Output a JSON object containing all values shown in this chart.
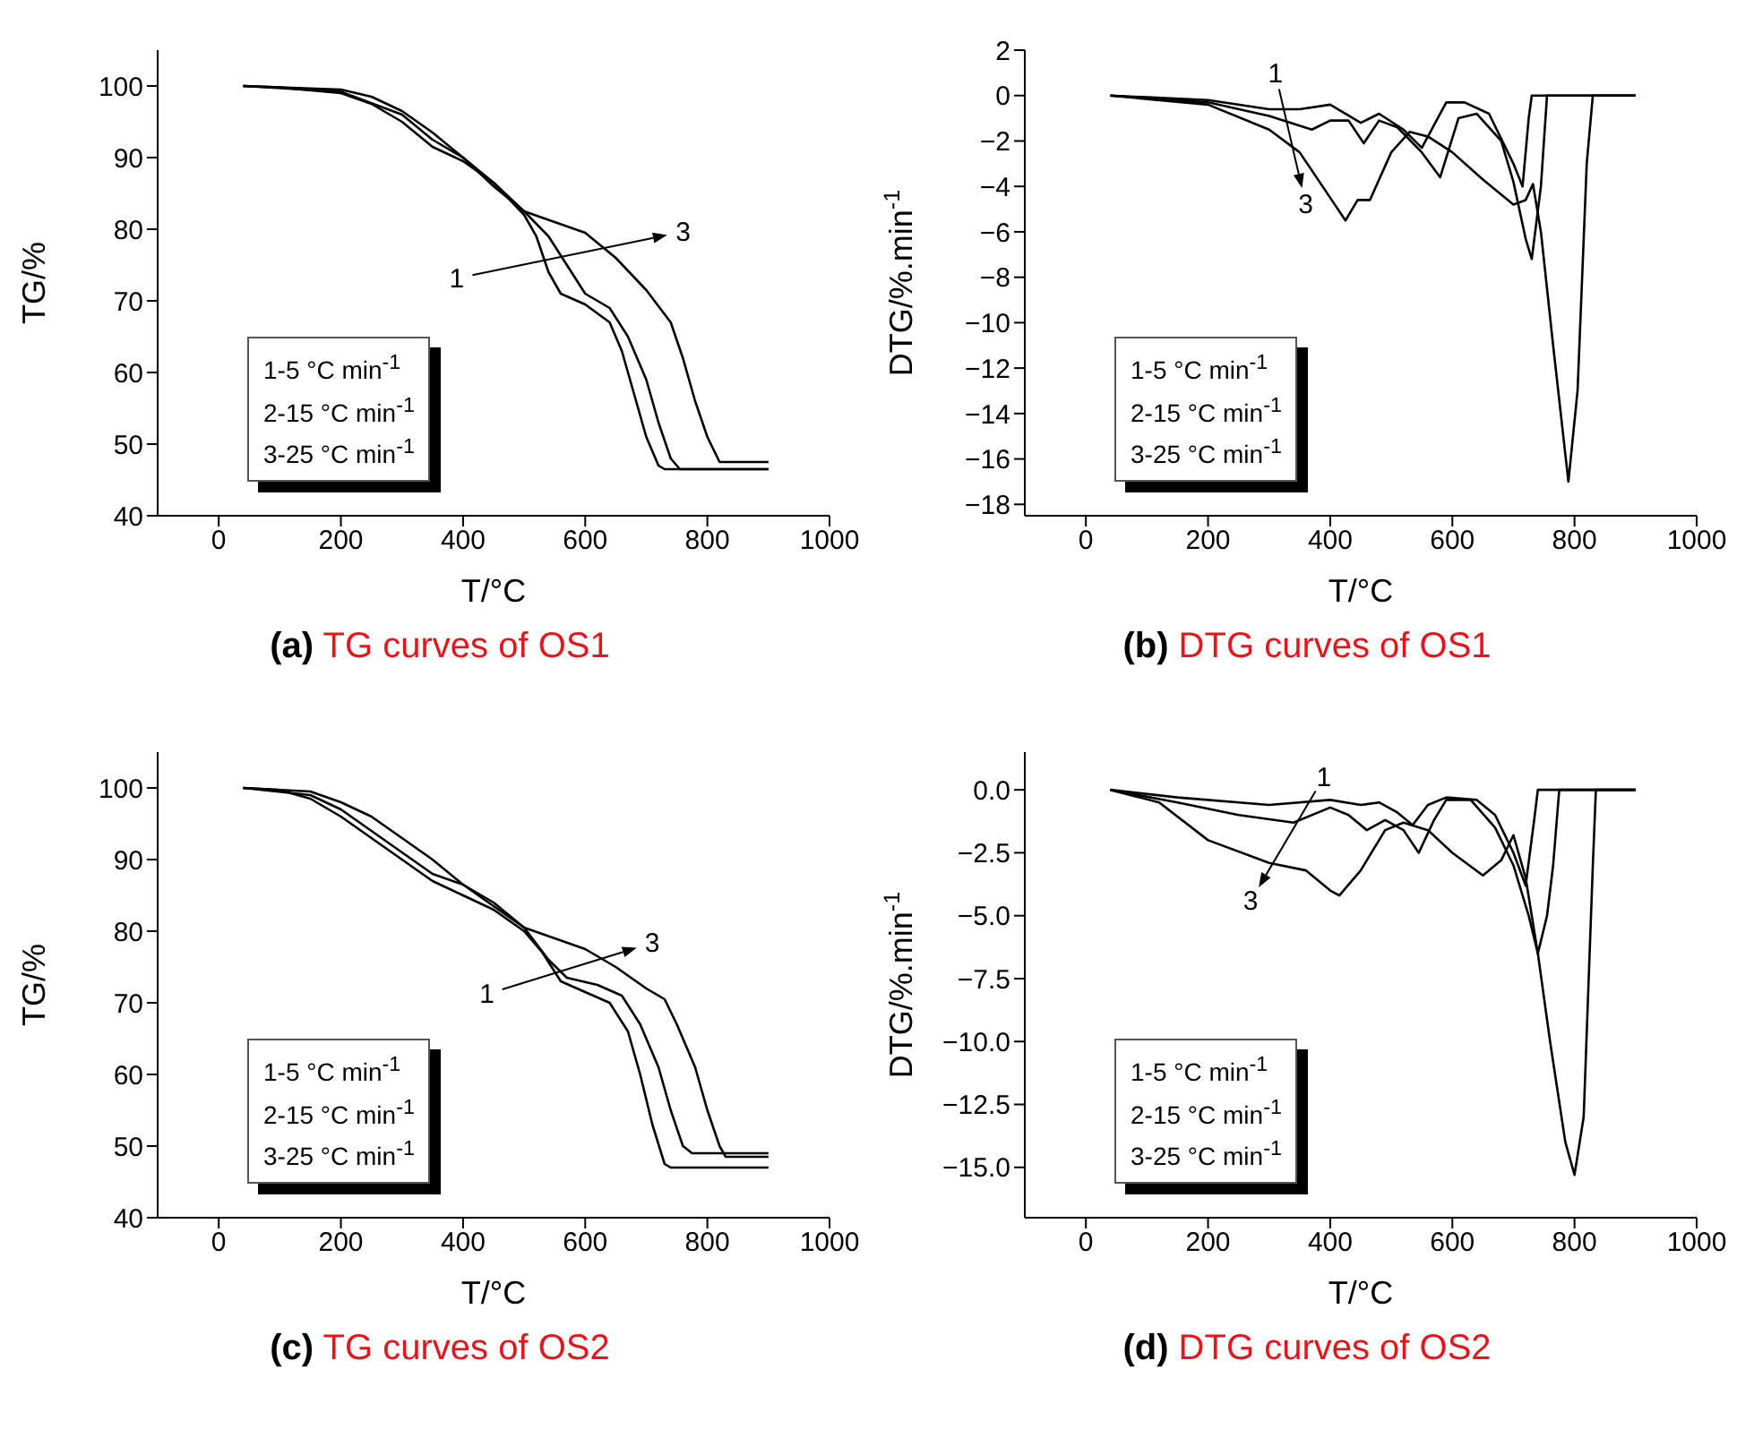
{
  "chart_data": [
    {
      "type": "line",
      "title": "(a) TG curves of OS1",
      "xlabel": "T/°C",
      "ylabel": "TG/%",
      "xlim": [
        -100,
        1000
      ],
      "xticks": [
        0,
        200,
        400,
        600,
        800,
        1000
      ],
      "ylim": [
        40,
        105
      ],
      "yticks": [
        40,
        50,
        60,
        70,
        80,
        90,
        100
      ],
      "series": [
        {
          "color": "#000000",
          "x": [
            40,
            100,
            200,
            250,
            300,
            350,
            400,
            450,
            500,
            520,
            540,
            560,
            600,
            640,
            660,
            680,
            700,
            720,
            730,
            800,
            900
          ],
          "values": [
            100,
            99.8,
            99,
            97.5,
            95,
            91.5,
            89.5,
            86.5,
            82,
            79,
            74,
            71,
            69.5,
            67,
            63,
            57,
            51,
            47,
            46.5,
            46.5,
            46.5
          ]
        },
        {
          "color": "#000000",
          "x": [
            40,
            200,
            300,
            350,
            400,
            450,
            500,
            540,
            570,
            600,
            640,
            670,
            700,
            720,
            740,
            755,
            900
          ],
          "values": [
            100,
            99.2,
            96,
            92.5,
            90,
            86.5,
            82.5,
            79,
            75,
            71,
            69,
            65,
            59,
            53,
            48,
            46.5,
            46.5
          ]
        },
        {
          "color": "#000000",
          "x": [
            40,
            200,
            250,
            300,
            350,
            400,
            450,
            500,
            550,
            600,
            650,
            700,
            740,
            760,
            780,
            800,
            820,
            900
          ],
          "values": [
            100,
            99.5,
            98.5,
            96.5,
            93.5,
            90,
            86,
            82.5,
            81,
            79.5,
            76,
            71.5,
            67,
            62,
            56,
            51,
            47.5,
            47.5
          ]
        }
      ],
      "annotations": [
        "1",
        "3",
        "1-5  °C min$^{-1}$",
        "2-15 °C min$^{-1}$",
        "3-25 °C min$^{-1}$"
      ]
    },
    {
      "type": "line",
      "title": "(b) DTG curves of OS1",
      "xlabel": "T/°C",
      "ylabel": "DTG/%.min$^{-1}$",
      "xlim": [
        -100,
        1000
      ],
      "xticks": [
        0,
        200,
        400,
        600,
        800,
        1000
      ],
      "ylim": [
        -18.5,
        2
      ],
      "yticks": [
        {
          "value": -18,
          "label": "−18"
        },
        {
          "value": -16,
          "label": "−16"
        },
        {
          "value": -14,
          "label": "−14"
        },
        {
          "value": -12,
          "label": "−12"
        },
        {
          "value": -10,
          "label": "−10"
        },
        {
          "value": -8,
          "label": "−8"
        },
        {
          "value": -6,
          "label": "−6"
        },
        {
          "value": -4,
          "label": "−4"
        },
        {
          "value": -2,
          "label": "−2"
        },
        {
          "value": 0,
          "label": "0"
        },
        {
          "value": 2,
          "label": "2"
        }
      ],
      "series": [
        {
          "color": "#000000",
          "x": [
            40,
            200,
            300,
            350,
            400,
            450,
            480,
            520,
            550,
            590,
            620,
            660,
            700,
            715,
            725,
            730,
            900
          ],
          "values": [
            0,
            -0.2,
            -0.6,
            -0.6,
            -0.4,
            -1.2,
            -0.8,
            -1.5,
            -2.3,
            -0.3,
            -0.3,
            -0.8,
            -3,
            -4,
            -1,
            0,
            0
          ]
        },
        {
          "color": "#000000",
          "x": [
            40,
            200,
            300,
            370,
            400,
            430,
            455,
            480,
            510,
            550,
            580,
            610,
            640,
            680,
            700,
            720,
            730,
            745,
            755,
            900
          ],
          "values": [
            0,
            -0.3,
            -0.9,
            -1.5,
            -1.1,
            -1.1,
            -2.1,
            -1.1,
            -1.4,
            -2.5,
            -3.6,
            -1,
            -0.8,
            -2,
            -3.8,
            -6.3,
            -7.2,
            -4,
            0,
            0
          ]
        },
        {
          "color": "#000000",
          "x": [
            40,
            200,
            300,
            350,
            400,
            425,
            445,
            465,
            500,
            530,
            560,
            600,
            650,
            700,
            720,
            732,
            745,
            765,
            790,
            805,
            820,
            830,
            900
          ],
          "values": [
            0,
            -0.4,
            -1.5,
            -2.5,
            -4.5,
            -5.5,
            -4.6,
            -4.6,
            -2.5,
            -1.6,
            -1.8,
            -2.5,
            -3.7,
            -4.8,
            -4.6,
            -3.9,
            -6,
            -11,
            -17,
            -13,
            -3,
            0,
            0
          ]
        }
      ],
      "annotations": [
        "1",
        "3",
        "1-5  °C min$^{-1}$",
        "2-15 °C min$^{-1}$",
        "3-25 °C min$^{-1}$"
      ]
    },
    {
      "type": "line",
      "title": "(c) TG curves of OS2",
      "xlabel": "T/°C",
      "ylabel": "TG/%",
      "xlim": [
        -100,
        1000
      ],
      "xticks": [
        0,
        200,
        400,
        600,
        800,
        1000
      ],
      "ylim": [
        40,
        105
      ],
      "yticks": [
        40,
        50,
        60,
        70,
        80,
        90,
        100
      ],
      "series": [
        {
          "color": "#000000",
          "x": [
            40,
            100,
            150,
            200,
            250,
            300,
            350,
            400,
            450,
            500,
            530,
            560,
            600,
            640,
            670,
            690,
            710,
            730,
            740,
            900
          ],
          "values": [
            100,
            99.7,
            98.5,
            96,
            93,
            90,
            87,
            85,
            83,
            80,
            77,
            73,
            71.5,
            70,
            66,
            60,
            53,
            47.5,
            47,
            47
          ]
        },
        {
          "color": "#000000",
          "x": [
            40,
            150,
            200,
            250,
            300,
            350,
            400,
            450,
            500,
            540,
            570,
            620,
            660,
            690,
            720,
            740,
            760,
            775,
            900
          ],
          "values": [
            100,
            99,
            97,
            94,
            91,
            88,
            86.5,
            84,
            80.5,
            76,
            73.5,
            72.5,
            71,
            67,
            61,
            55,
            50,
            49,
            49
          ]
        },
        {
          "color": "#000000",
          "x": [
            40,
            150,
            200,
            250,
            300,
            350,
            400,
            450,
            500,
            550,
            600,
            650,
            700,
            730,
            750,
            780,
            800,
            820,
            830,
            900
          ],
          "values": [
            100,
            99.5,
            98,
            96,
            93,
            90,
            86.5,
            83.5,
            80.5,
            79,
            77.5,
            75,
            72,
            70.5,
            67,
            61,
            55,
            50,
            48.5,
            48.5
          ]
        }
      ],
      "annotations": [
        "1",
        "3",
        "1-5  °C min$^{-1}$",
        "2-15 °C min$^{-1}$",
        "3-25 °C min$^{-1}$"
      ]
    },
    {
      "type": "line",
      "title": "(d) DTG curves of OS2",
      "xlabel": "T/°C",
      "ylabel": "DTG/%.min$^{-1}$",
      "xlim": [
        -100,
        1000
      ],
      "xticks": [
        0,
        200,
        400,
        600,
        800,
        1000
      ],
      "ylim": [
        -17,
        1.5
      ],
      "yticks": [
        {
          "value": -15,
          "label": "−15.0"
        },
        {
          "value": -12.5,
          "label": "−12.5"
        },
        {
          "value": -10,
          "label": "−10.0"
        },
        {
          "value": -7.5,
          "label": "−7.5"
        },
        {
          "value": -5,
          "label": "−5.0"
        },
        {
          "value": -2.5,
          "label": "−2.5"
        },
        {
          "value": 0,
          "label": "0.0"
        }
      ],
      "series": [
        {
          "color": "#000000",
          "x": [
            40,
            150,
            300,
            400,
            450,
            480,
            510,
            535,
            560,
            590,
            640,
            670,
            700,
            720,
            735,
            740,
            900
          ],
          "values": [
            0,
            -0.3,
            -0.6,
            -0.4,
            -0.6,
            -0.5,
            -0.9,
            -1.4,
            -0.6,
            -0.3,
            -0.4,
            -1,
            -2.5,
            -3.8,
            -1,
            0,
            0
          ]
        },
        {
          "color": "#000000",
          "x": [
            40,
            150,
            250,
            340,
            400,
            430,
            460,
            490,
            520,
            545,
            570,
            590,
            630,
            670,
            700,
            725,
            740,
            755,
            765,
            775,
            900
          ],
          "values": [
            0,
            -0.5,
            -1,
            -1.3,
            -0.7,
            -1,
            -1.6,
            -1.2,
            -1.6,
            -2.5,
            -1.2,
            -0.4,
            -0.4,
            -1.5,
            -3,
            -5,
            -6.5,
            -5,
            -3,
            0,
            0
          ]
        },
        {
          "color": "#000000",
          "x": [
            40,
            120,
            200,
            300,
            360,
            400,
            415,
            450,
            490,
            520,
            560,
            600,
            650,
            680,
            700,
            720,
            740,
            760,
            785,
            800,
            815,
            830,
            835,
            900
          ],
          "values": [
            0,
            -0.5,
            -2,
            -2.9,
            -3.2,
            -4,
            -4.2,
            -3.2,
            -1.6,
            -1.3,
            -1.6,
            -2.5,
            -3.4,
            -2.8,
            -1.8,
            -3.5,
            -6.5,
            -10,
            -14,
            -15.3,
            -13,
            -3,
            0,
            0
          ]
        }
      ],
      "annotations": [
        "1",
        "3",
        "1-5  °C min$^{-1}$",
        "2-15 °C min$^{-1}$",
        "3-25 °C min$^{-1}$"
      ]
    }
  ]
}
